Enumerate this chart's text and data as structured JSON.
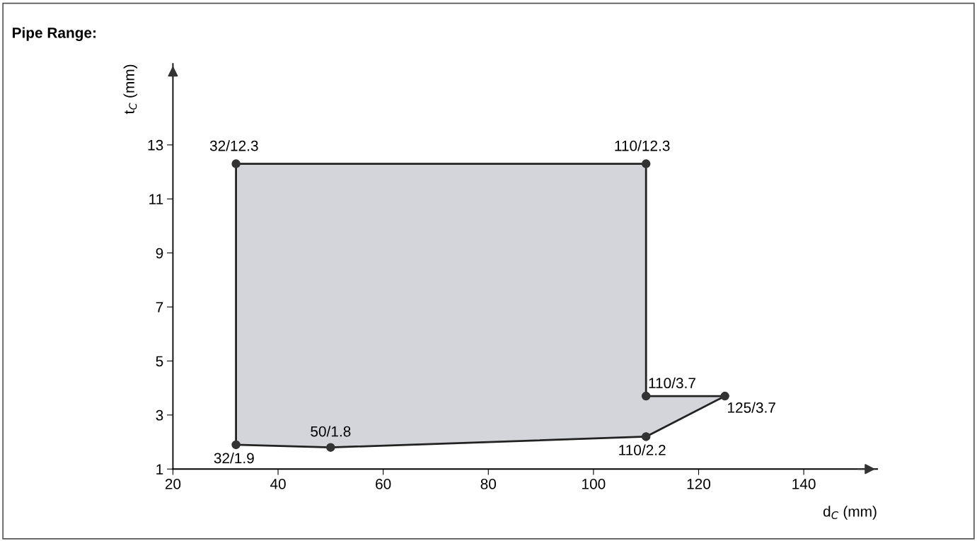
{
  "chart_data": {
    "type": "area",
    "title": "Pipe Range:",
    "xlabel": "d$_{C}$ (mm)",
    "ylabel": "t$_{C}$ (mm)",
    "xlim": [
      20,
      154
    ],
    "ylim": [
      1,
      16
    ],
    "xticks": [
      20,
      40,
      60,
      80,
      100,
      120,
      140
    ],
    "yticks": [
      1,
      3,
      5,
      7,
      9,
      11,
      13
    ],
    "grid": false,
    "legend": false,
    "marker": "circle",
    "line_style": "solid",
    "series": [
      {
        "color": "#d4d5da",
        "x": [
          32,
          110,
          110,
          125,
          110,
          50,
          32
        ],
        "values": [
          12.3,
          12.3,
          3.7,
          3.7,
          2.2,
          1.8,
          1.9
        ],
        "value_labels": [
          "32/12.3",
          "110/12.3",
          "110/3.7",
          "125/3.7",
          "110/2.2",
          "50/1.8",
          "32/1.9"
        ]
      }
    ]
  }
}
